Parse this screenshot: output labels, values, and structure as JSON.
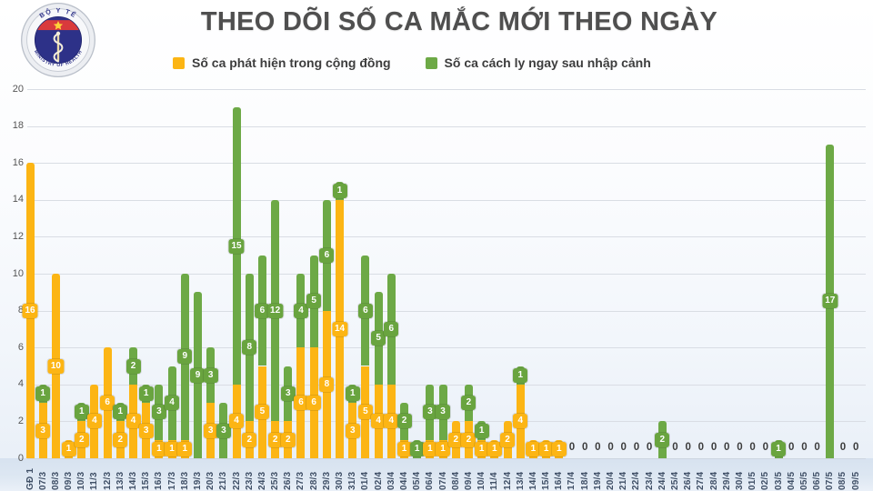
{
  "header": {
    "title": "THEO DÕI SỐ CA MẮC MỚI THEO NGÀY",
    "logo": {
      "top_text": "BỘ Y TẾ",
      "bottom_text": "MINISTRY OF HEALTH"
    }
  },
  "legend": [
    {
      "label": "Số ca phát hiện trong cộng đồng",
      "color": "#FCB514"
    },
    {
      "label": "Số ca cách ly ngay sau nhập cảnh",
      "color": "#6DA946"
    }
  ],
  "chart_data": {
    "type": "bar",
    "stacked": true,
    "title": "THEO DÕI SỐ CA MẮC MỚI THEO NGÀY",
    "xlabel": "",
    "ylabel": "",
    "ylim": [
      0,
      20
    ],
    "yticks": [
      0,
      2,
      4,
      6,
      8,
      10,
      12,
      14,
      16,
      18,
      20
    ],
    "grid": true,
    "legend_position": "top",
    "zero_label": "0",
    "categories": [
      "GĐ 1",
      "07/3",
      "08/3",
      "09/3",
      "10/3",
      "11/3",
      "12/3",
      "13/3",
      "14/3",
      "15/3",
      "16/3",
      "17/3",
      "18/3",
      "19/3",
      "20/3",
      "21/3",
      "22/3",
      "23/3",
      "24/3",
      "25/3",
      "26/3",
      "27/3",
      "28/3",
      "29/3",
      "30/3",
      "31/3",
      "01/4",
      "02/4",
      "03/4",
      "04/4",
      "05/4",
      "06/4",
      "07/4",
      "08/4",
      "09/4",
      "10/4",
      "11/4",
      "12/4",
      "13/4",
      "14/4",
      "15/4",
      "16/4",
      "17/4",
      "18/4",
      "19/4",
      "20/4",
      "21/4",
      "22/4",
      "23/4",
      "24/4",
      "25/4",
      "26/4",
      "27/4",
      "28/4",
      "29/4",
      "30/4",
      "01/5",
      "02/5",
      "03/5",
      "04/5",
      "05/5",
      "06/5",
      "07/5",
      "08/5",
      "09/5"
    ],
    "series": [
      {
        "name": "Số ca phát hiện trong cộng đồng",
        "color": "#FCB514",
        "values": [
          16,
          3,
          10,
          1,
          2,
          4,
          6,
          2,
          4,
          3,
          1,
          1,
          1,
          0,
          3,
          0,
          4,
          2,
          5,
          2,
          2,
          6,
          6,
          8,
          14,
          3,
          5,
          4,
          4,
          1,
          0,
          1,
          1,
          2,
          2,
          1,
          1,
          2,
          4,
          1,
          1,
          1,
          0,
          0,
          0,
          0,
          0,
          0,
          0,
          0,
          0,
          0,
          0,
          0,
          0,
          0,
          0,
          0,
          0,
          0,
          0,
          0,
          0,
          0,
          0
        ]
      },
      {
        "name": "Số ca cách ly ngay sau nhập cảnh",
        "color": "#6DA946",
        "values": [
          0,
          1,
          0,
          0,
          1,
          0,
          0,
          1,
          2,
          1,
          3,
          4,
          9,
          9,
          3,
          3,
          15,
          8,
          6,
          12,
          3,
          4,
          5,
          6,
          1,
          1,
          6,
          5,
          6,
          2,
          1,
          3,
          3,
          0,
          2,
          1,
          0,
          0,
          1,
          0,
          0,
          0,
          0,
          0,
          0,
          0,
          0,
          0,
          0,
          2,
          0,
          0,
          0,
          0,
          0,
          0,
          0,
          0,
          1,
          0,
          0,
          0,
          17,
          0,
          0
        ]
      }
    ]
  }
}
